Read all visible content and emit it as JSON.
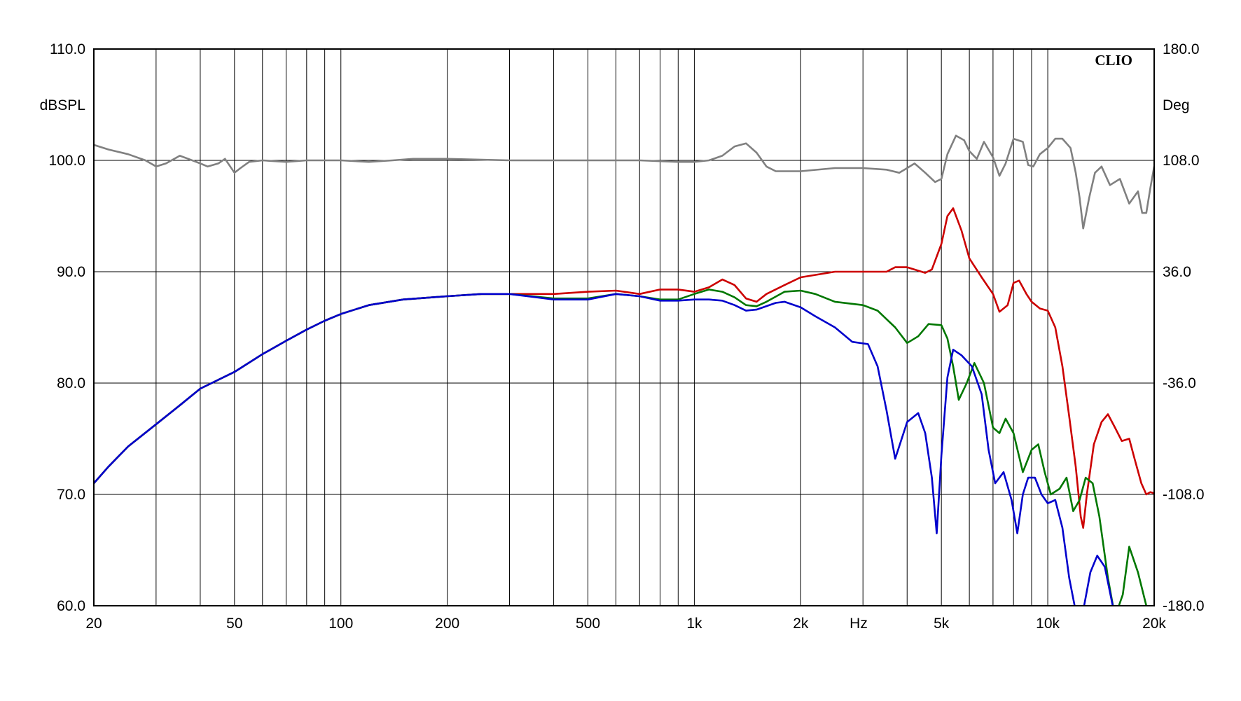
{
  "chart_data": {
    "type": "line",
    "brand": "CLIO",
    "x_scale": "log",
    "xlim": [
      20,
      20000
    ],
    "ylim": [
      60,
      110
    ],
    "y2lim": [
      -180,
      180
    ],
    "grid": true,
    "xlabel": "Hz",
    "ylabel": "dBSPL",
    "y2label": "Deg",
    "x_ticks": [
      {
        "value": 20,
        "label": "20"
      },
      {
        "value": 50,
        "label": "50"
      },
      {
        "value": 100,
        "label": "100"
      },
      {
        "value": 200,
        "label": "200"
      },
      {
        "value": 500,
        "label": "500"
      },
      {
        "value": 1000,
        "label": "1k"
      },
      {
        "value": 2000,
        "label": "2k"
      },
      {
        "value": 5000,
        "label": "5k"
      },
      {
        "value": 10000,
        "label": "10k"
      },
      {
        "value": 20000,
        "label": "20k"
      }
    ],
    "y_ticks": [
      {
        "value": 60,
        "label": "60.0"
      },
      {
        "value": 70,
        "label": "70.0"
      },
      {
        "value": 80,
        "label": "80.0"
      },
      {
        "value": 90,
        "label": "90.0"
      },
      {
        "value": 100,
        "label": "100.0"
      },
      {
        "value": 110,
        "label": "110.0"
      }
    ],
    "y2_ticks": [
      {
        "value": -180,
        "label": "-180.0"
      },
      {
        "value": -108,
        "label": "-108.0"
      },
      {
        "value": -36,
        "label": "-36.0"
      },
      {
        "value": 36,
        "label": "36.0"
      },
      {
        "value": 108,
        "label": "108.0"
      },
      {
        "value": 180,
        "label": "180.0"
      }
    ],
    "series": [
      {
        "color": "#808080",
        "axis": "right",
        "points": [
          [
            20,
            118
          ],
          [
            22,
            115
          ],
          [
            25,
            112
          ],
          [
            28,
            108
          ],
          [
            30,
            104
          ],
          [
            32,
            106
          ],
          [
            35,
            111
          ],
          [
            37,
            109
          ],
          [
            40,
            106
          ],
          [
            42,
            104
          ],
          [
            45,
            106
          ],
          [
            47,
            109
          ],
          [
            50,
            100
          ],
          [
            52,
            103
          ],
          [
            55,
            107
          ],
          [
            60,
            108
          ],
          [
            70,
            107
          ],
          [
            80,
            108
          ],
          [
            100,
            108
          ],
          [
            120,
            107
          ],
          [
            140,
            108
          ],
          [
            160,
            109
          ],
          [
            200,
            109
          ],
          [
            300,
            108
          ],
          [
            500,
            108
          ],
          [
            700,
            108
          ],
          [
            900,
            107
          ],
          [
            1000,
            107
          ],
          [
            1100,
            108
          ],
          [
            1200,
            111
          ],
          [
            1300,
            117
          ],
          [
            1400,
            119
          ],
          [
            1500,
            113
          ],
          [
            1600,
            104
          ],
          [
            1700,
            101
          ],
          [
            2000,
            101
          ],
          [
            2500,
            103
          ],
          [
            3000,
            103
          ],
          [
            3500,
            102
          ],
          [
            3800,
            100
          ],
          [
            4000,
            103
          ],
          [
            4200,
            106
          ],
          [
            4500,
            100
          ],
          [
            4800,
            94
          ],
          [
            5000,
            96
          ],
          [
            5200,
            112
          ],
          [
            5500,
            124
          ],
          [
            5800,
            121
          ],
          [
            6000,
            114
          ],
          [
            6300,
            109
          ],
          [
            6600,
            120
          ],
          [
            7000,
            110
          ],
          [
            7300,
            98
          ],
          [
            7600,
            106
          ],
          [
            8000,
            122
          ],
          [
            8500,
            120
          ],
          [
            8800,
            105
          ],
          [
            9100,
            104
          ],
          [
            9500,
            112
          ],
          [
            10000,
            116
          ],
          [
            10500,
            122
          ],
          [
            11000,
            122
          ],
          [
            11600,
            116
          ],
          [
            12000,
            100
          ],
          [
            12300,
            84
          ],
          [
            12600,
            64
          ],
          [
            13100,
            84
          ],
          [
            13600,
            100
          ],
          [
            14200,
            104
          ],
          [
            15000,
            92
          ],
          [
            16000,
            96
          ],
          [
            17000,
            80
          ],
          [
            18000,
            88
          ],
          [
            18500,
            74
          ],
          [
            19000,
            74
          ],
          [
            19500,
            90
          ],
          [
            20000,
            104
          ]
        ]
      },
      {
        "color": "#cc0000",
        "axis": "left",
        "points": [
          [
            20,
            71
          ],
          [
            22,
            72.5
          ],
          [
            25,
            74.3
          ],
          [
            30,
            76.3
          ],
          [
            35,
            78
          ],
          [
            40,
            79.5
          ],
          [
            50,
            81
          ],
          [
            60,
            82.6
          ],
          [
            70,
            83.8
          ],
          [
            80,
            84.8
          ],
          [
            90,
            85.6
          ],
          [
            100,
            86.2
          ],
          [
            120,
            87
          ],
          [
            150,
            87.5
          ],
          [
            200,
            87.8
          ],
          [
            250,
            88
          ],
          [
            300,
            88
          ],
          [
            400,
            88
          ],
          [
            500,
            88.2
          ],
          [
            600,
            88.3
          ],
          [
            700,
            88
          ],
          [
            800,
            88.4
          ],
          [
            900,
            88.4
          ],
          [
            1000,
            88.2
          ],
          [
            1100,
            88.6
          ],
          [
            1200,
            89.3
          ],
          [
            1300,
            88.8
          ],
          [
            1400,
            87.6
          ],
          [
            1500,
            87.3
          ],
          [
            1600,
            88
          ],
          [
            1800,
            88.8
          ],
          [
            2000,
            89.5
          ],
          [
            2500,
            90
          ],
          [
            3000,
            90
          ],
          [
            3500,
            90
          ],
          [
            3700,
            90.4
          ],
          [
            4000,
            90.4
          ],
          [
            4500,
            89.9
          ],
          [
            4700,
            90.2
          ],
          [
            5000,
            92.5
          ],
          [
            5200,
            95
          ],
          [
            5400,
            95.7
          ],
          [
            5700,
            93.7
          ],
          [
            6000,
            91.2
          ],
          [
            6500,
            89.5
          ],
          [
            7000,
            88
          ],
          [
            7300,
            86.4
          ],
          [
            7700,
            87
          ],
          [
            8000,
            89
          ],
          [
            8300,
            89.2
          ],
          [
            8700,
            88
          ],
          [
            9000,
            87.3
          ],
          [
            9500,
            86.7
          ],
          [
            10000,
            86.5
          ],
          [
            10500,
            85
          ],
          [
            11000,
            81.5
          ],
          [
            11500,
            77
          ],
          [
            12000,
            72.5
          ],
          [
            12400,
            68
          ],
          [
            12600,
            67
          ],
          [
            12900,
            70
          ],
          [
            13500,
            74.5
          ],
          [
            14200,
            76.5
          ],
          [
            14800,
            77.2
          ],
          [
            15500,
            76
          ],
          [
            16200,
            74.8
          ],
          [
            17000,
            75
          ],
          [
            17600,
            73.2
          ],
          [
            18400,
            71
          ],
          [
            19000,
            70
          ],
          [
            19500,
            70.2
          ],
          [
            20000,
            70.1
          ]
        ]
      },
      {
        "color": "#007700",
        "axis": "left",
        "points": [
          [
            20,
            71
          ],
          [
            22,
            72.5
          ],
          [
            25,
            74.3
          ],
          [
            30,
            76.3
          ],
          [
            35,
            78
          ],
          [
            40,
            79.5
          ],
          [
            50,
            81
          ],
          [
            60,
            82.6
          ],
          [
            70,
            83.8
          ],
          [
            80,
            84.8
          ],
          [
            90,
            85.6
          ],
          [
            100,
            86.2
          ],
          [
            120,
            87
          ],
          [
            150,
            87.5
          ],
          [
            200,
            87.8
          ],
          [
            250,
            88
          ],
          [
            300,
            88
          ],
          [
            400,
            87.6
          ],
          [
            500,
            87.6
          ],
          [
            600,
            88
          ],
          [
            700,
            87.8
          ],
          [
            800,
            87.5
          ],
          [
            900,
            87.5
          ],
          [
            1000,
            88
          ],
          [
            1100,
            88.4
          ],
          [
            1200,
            88.2
          ],
          [
            1300,
            87.7
          ],
          [
            1400,
            87
          ],
          [
            1500,
            86.9
          ],
          [
            1600,
            87.3
          ],
          [
            1800,
            88.2
          ],
          [
            2000,
            88.3
          ],
          [
            2200,
            88
          ],
          [
            2500,
            87.3
          ],
          [
            3000,
            87
          ],
          [
            3300,
            86.5
          ],
          [
            3700,
            85
          ],
          [
            4000,
            83.6
          ],
          [
            4300,
            84.2
          ],
          [
            4600,
            85.3
          ],
          [
            5000,
            85.2
          ],
          [
            5200,
            84
          ],
          [
            5400,
            81.5
          ],
          [
            5600,
            78.5
          ],
          [
            5900,
            80
          ],
          [
            6200,
            81.8
          ],
          [
            6600,
            80
          ],
          [
            7000,
            76
          ],
          [
            7300,
            75.5
          ],
          [
            7600,
            76.8
          ],
          [
            8000,
            75.5
          ],
          [
            8500,
            72
          ],
          [
            9000,
            74
          ],
          [
            9400,
            74.5
          ],
          [
            9800,
            72
          ],
          [
            10200,
            70
          ],
          [
            10800,
            70.5
          ],
          [
            11300,
            71.5
          ],
          [
            11800,
            68.5
          ],
          [
            12300,
            69.5
          ],
          [
            12800,
            71.5
          ],
          [
            13400,
            71
          ],
          [
            14000,
            68
          ],
          [
            14800,
            62.5
          ],
          [
            15500,
            59
          ],
          [
            16300,
            61
          ],
          [
            17000,
            65.3
          ],
          [
            18000,
            63
          ],
          [
            19000,
            60
          ],
          [
            20000,
            58
          ]
        ]
      },
      {
        "color": "#0000cc",
        "axis": "left",
        "points": [
          [
            20,
            71
          ],
          [
            22,
            72.5
          ],
          [
            25,
            74.3
          ],
          [
            30,
            76.3
          ],
          [
            35,
            78
          ],
          [
            40,
            79.5
          ],
          [
            50,
            81
          ],
          [
            60,
            82.6
          ],
          [
            70,
            83.8
          ],
          [
            80,
            84.8
          ],
          [
            90,
            85.6
          ],
          [
            100,
            86.2
          ],
          [
            120,
            87
          ],
          [
            150,
            87.5
          ],
          [
            200,
            87.8
          ],
          [
            250,
            88
          ],
          [
            300,
            88
          ],
          [
            400,
            87.5
          ],
          [
            500,
            87.5
          ],
          [
            600,
            88
          ],
          [
            700,
            87.8
          ],
          [
            800,
            87.4
          ],
          [
            900,
            87.4
          ],
          [
            1000,
            87.5
          ],
          [
            1100,
            87.5
          ],
          [
            1200,
            87.4
          ],
          [
            1300,
            87
          ],
          [
            1400,
            86.5
          ],
          [
            1500,
            86.6
          ],
          [
            1700,
            87.2
          ],
          [
            1800,
            87.3
          ],
          [
            2000,
            86.8
          ],
          [
            2200,
            86
          ],
          [
            2500,
            85
          ],
          [
            2800,
            83.7
          ],
          [
            3100,
            83.5
          ],
          [
            3300,
            81.5
          ],
          [
            3500,
            77.5
          ],
          [
            3700,
            73.2
          ],
          [
            4000,
            76.5
          ],
          [
            4300,
            77.3
          ],
          [
            4500,
            75.5
          ],
          [
            4700,
            71.5
          ],
          [
            4850,
            66.5
          ],
          [
            5000,
            73.5
          ],
          [
            5200,
            80.5
          ],
          [
            5400,
            83
          ],
          [
            5700,
            82.5
          ],
          [
            6100,
            81.5
          ],
          [
            6500,
            79
          ],
          [
            6800,
            74
          ],
          [
            7100,
            71
          ],
          [
            7500,
            72
          ],
          [
            7900,
            69.5
          ],
          [
            8200,
            66.5
          ],
          [
            8500,
            70
          ],
          [
            8800,
            71.5
          ],
          [
            9200,
            71.5
          ],
          [
            9600,
            70
          ],
          [
            10000,
            69.2
          ],
          [
            10500,
            69.5
          ],
          [
            11000,
            67
          ],
          [
            11500,
            62.5
          ],
          [
            12000,
            59.5
          ],
          [
            12500,
            59
          ],
          [
            13200,
            63
          ],
          [
            13800,
            64.5
          ],
          [
            14500,
            63.5
          ],
          [
            15500,
            59
          ],
          [
            17000,
            56
          ],
          [
            20000,
            56
          ]
        ]
      }
    ]
  }
}
